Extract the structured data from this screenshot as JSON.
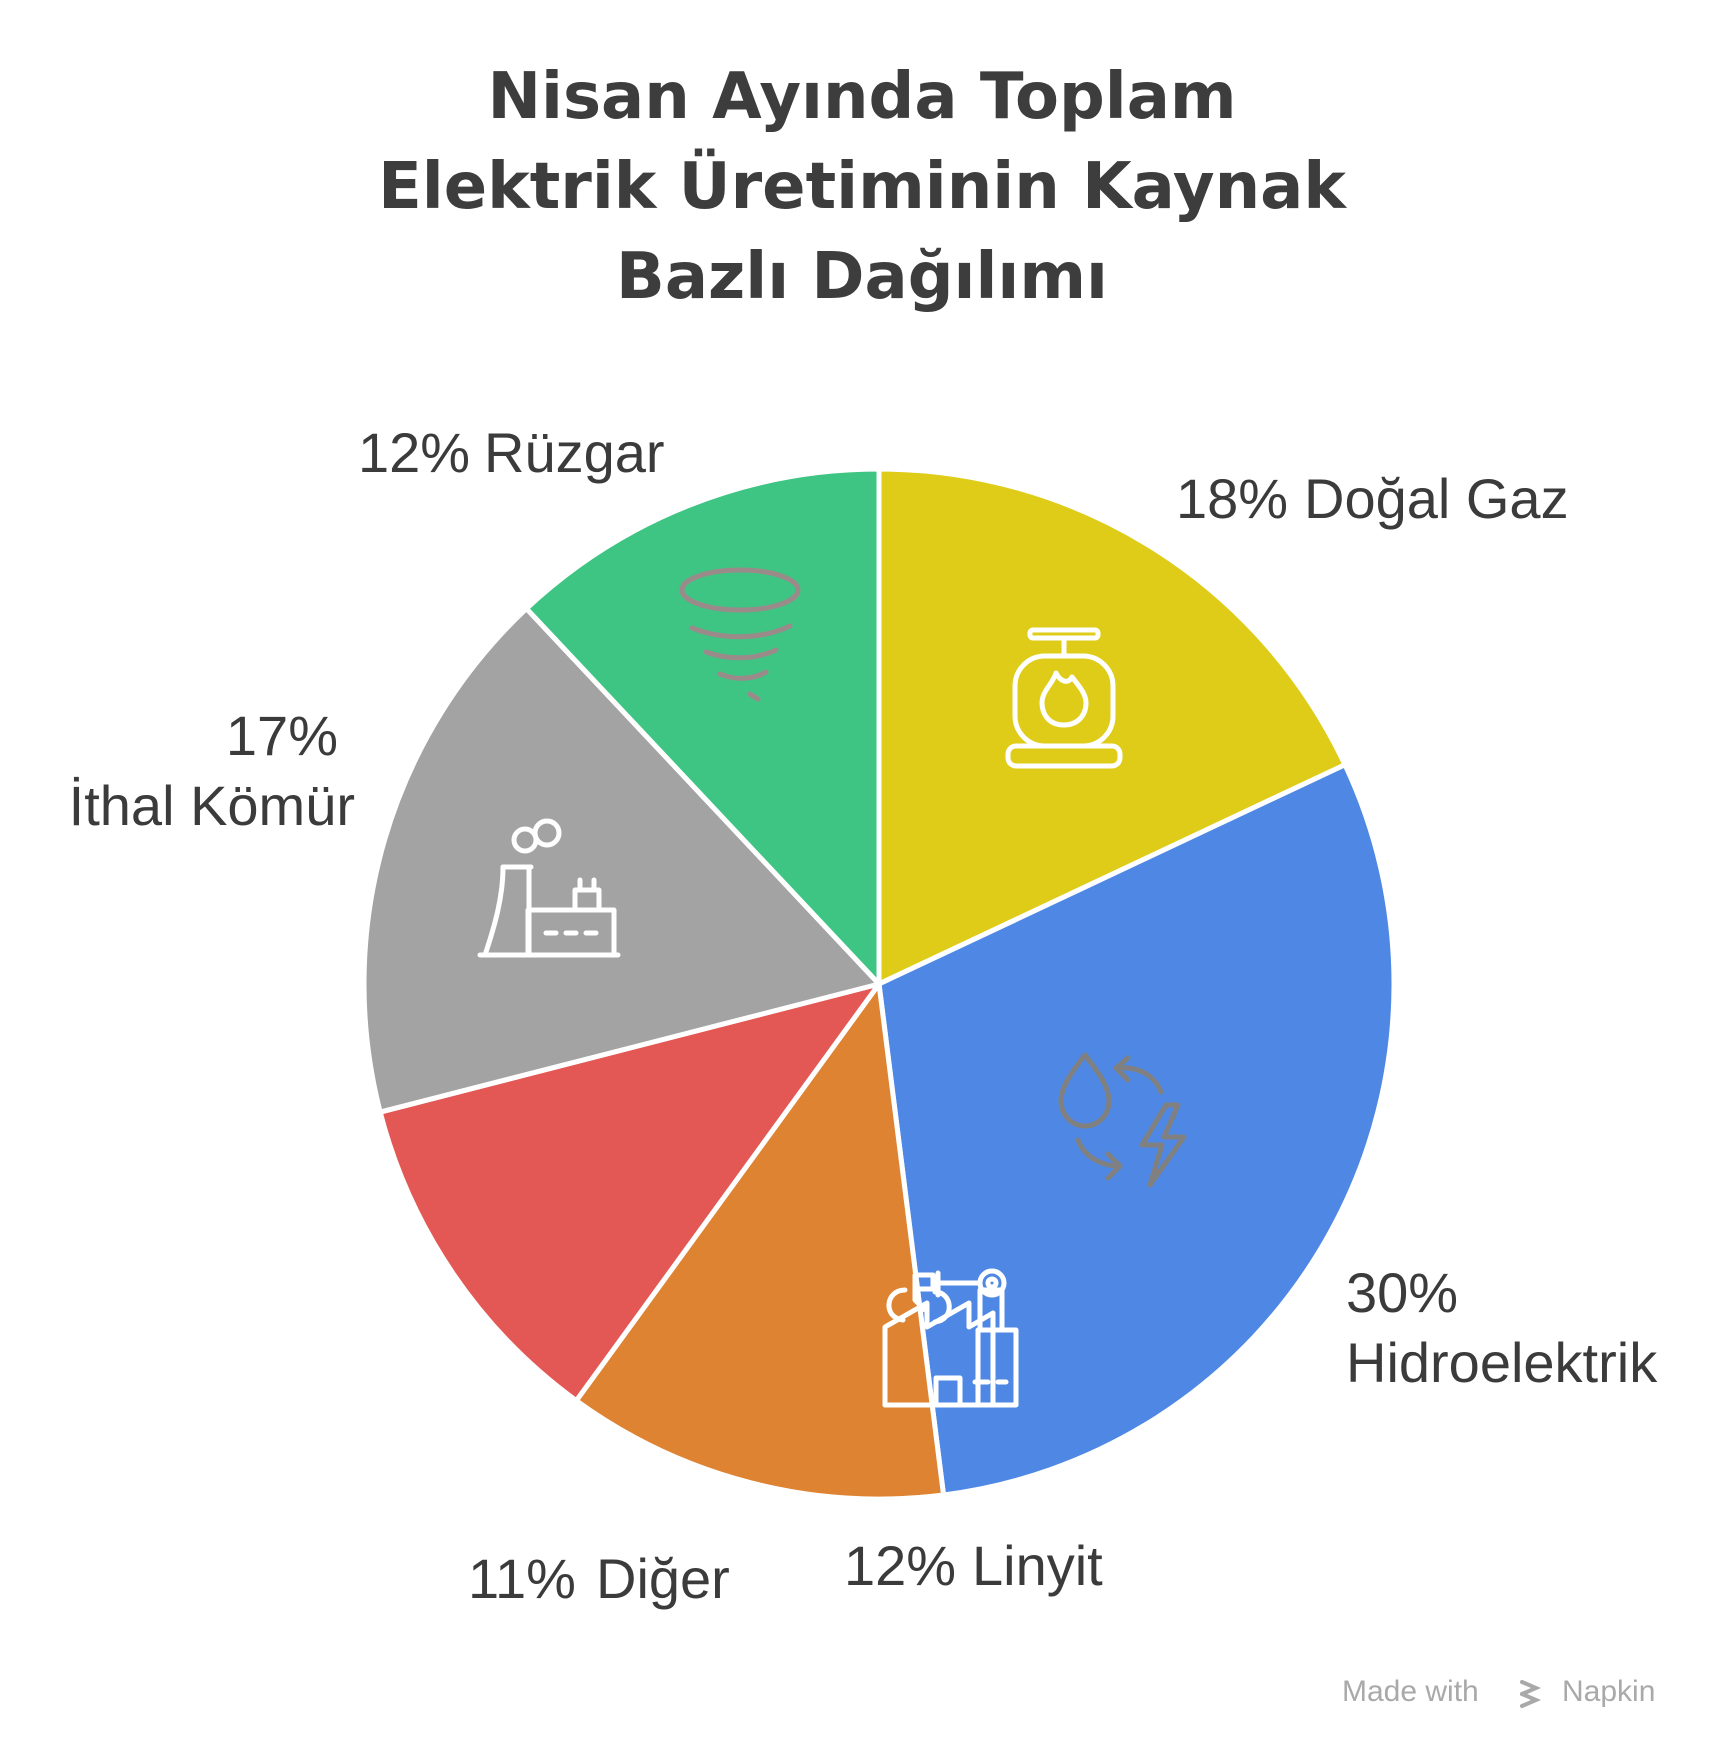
{
  "title_lines": [
    "Nisan Ayında Toplam",
    "Elektrik Üretiminin Kaynak",
    "Bazlı Dağılımı"
  ],
  "watermark": "Made with Napkin",
  "chart_data": {
    "type": "pie",
    "title": "Nisan Ayında Toplam Elektrik Üretiminin Kaynak Bazlı Dağılımı",
    "slices": [
      {
        "label": "Doğal Gaz",
        "value": 18,
        "value_label": "18%",
        "color": "#dfcc18",
        "icon": "gas-cylinder-icon"
      },
      {
        "label": "Hidroelektrik",
        "value": 30,
        "value_label": "30%",
        "color": "#4f88e4",
        "icon": "hydro-cycle-icon"
      },
      {
        "label": "Linyit",
        "value": 12,
        "value_label": "12%",
        "color": "#dd8331",
        "icon": "factory-robot-arm-icon"
      },
      {
        "label": "Diğer",
        "value": 11,
        "value_label": "11%",
        "color": "#e35855",
        "icon": ""
      },
      {
        "label": "İthal Kömür",
        "value": 17,
        "value_label": "17%",
        "color": "#a3a3a3",
        "icon": "power-plant-icon"
      },
      {
        "label": "Rüzgar",
        "value": 12,
        "value_label": "12%",
        "color": "#3fc583",
        "icon": "tornado-icon"
      }
    ],
    "start": "top",
    "direction": "clockwise",
    "legend": "none"
  }
}
